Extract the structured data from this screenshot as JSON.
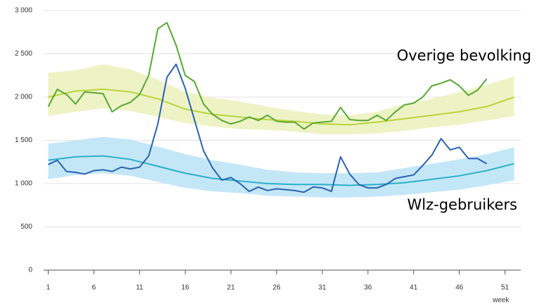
{
  "chart_data": {
    "type": "line",
    "x": [
      1,
      2,
      3,
      4,
      5,
      6,
      7,
      8,
      9,
      10,
      11,
      12,
      13,
      14,
      15,
      16,
      17,
      18,
      19,
      20,
      21,
      22,
      23,
      24,
      25,
      26,
      27,
      28,
      29,
      30,
      31,
      32,
      33,
      34,
      35,
      36,
      37,
      38,
      39,
      40,
      41,
      42,
      43,
      44,
      45,
      46,
      47,
      48,
      49,
      50,
      51,
      52
    ],
    "xlim": [
      0.5,
      52.5
    ],
    "xticks": [
      1,
      6,
      11,
      16,
      21,
      26,
      31,
      36,
      41,
      46,
      51
    ],
    "xlabel": "week",
    "ylim": [
      0,
      3000
    ],
    "yticks": [
      {
        "value": 0,
        "label": "0"
      },
      {
        "value": 500,
        "label": "500"
      },
      {
        "value": 1000,
        "label": "1 000"
      },
      {
        "value": 1500,
        "label": "1 500"
      },
      {
        "value": 2000,
        "label": "2 000"
      },
      {
        "value": 2500,
        "label": "2 500"
      },
      {
        "value": 3000,
        "label": "3 000"
      }
    ],
    "grid": true,
    "legend": "inline",
    "bands": [
      {
        "x": [
          1,
          4,
          7,
          10,
          13,
          16,
          19,
          22,
          25,
          28,
          31,
          34,
          37,
          40,
          43,
          46,
          49,
          52
        ],
        "center": [
          2000,
          2070,
          2090,
          2060,
          1980,
          1860,
          1800,
          1770,
          1740,
          1720,
          1690,
          1680,
          1710,
          1750,
          1790,
          1830,
          1890,
          2000
        ],
        "upper": [
          2280,
          2310,
          2380,
          2320,
          2200,
          2060,
          1990,
          1950,
          1890,
          1840,
          1800,
          1790,
          1830,
          1920,
          1980,
          2060,
          2140,
          2240
        ],
        "lower": [
          1780,
          1830,
          1870,
          1840,
          1770,
          1700,
          1660,
          1630,
          1620,
          1600,
          1570,
          1570,
          1580,
          1610,
          1650,
          1680,
          1730,
          1780
        ],
        "color": "#eef3c6",
        "center_color": "#b9d53a"
      },
      {
        "x": [
          1,
          4,
          7,
          10,
          13,
          16,
          19,
          22,
          25,
          28,
          31,
          34,
          37,
          40,
          43,
          46,
          49,
          52
        ],
        "center": [
          1270,
          1310,
          1320,
          1280,
          1200,
          1120,
          1060,
          1030,
          1000,
          990,
          990,
          980,
          990,
          1010,
          1050,
          1090,
          1150,
          1230
        ],
        "upper": [
          1460,
          1500,
          1540,
          1510,
          1430,
          1340,
          1270,
          1220,
          1160,
          1130,
          1120,
          1120,
          1130,
          1180,
          1230,
          1280,
          1340,
          1420
        ],
        "lower": [
          1050,
          1100,
          1120,
          1090,
          1020,
          950,
          910,
          890,
          860,
          850,
          840,
          840,
          850,
          870,
          900,
          930,
          980,
          1040
        ],
        "color": "#c4e7f8",
        "center_color": "#2bb0c9"
      }
    ],
    "series": [
      {
        "name": "Overige bevolking",
        "color": "#58a832",
        "values": [
          1890,
          2090,
          2030,
          1920,
          2060,
          2050,
          2040,
          1830,
          1900,
          1940,
          2030,
          2250,
          2790,
          2860,
          2600,
          2250,
          2180,
          1920,
          1800,
          1730,
          1690,
          1720,
          1770,
          1730,
          1790,
          1720,
          1710,
          1710,
          1630,
          1700,
          1710,
          1720,
          1880,
          1740,
          1730,
          1730,
          1790,
          1730,
          1830,
          1910,
          1930,
          2000,
          2130,
          2160,
          2200,
          2130,
          2020,
          2080,
          2210,
          null,
          null,
          null
        ]
      },
      {
        "name": "Wlz-gebruikers",
        "color": "#2a62b4",
        "values": [
          1220,
          1270,
          1140,
          1130,
          1110,
          1150,
          1160,
          1140,
          1190,
          1170,
          1190,
          1320,
          1690,
          2230,
          2380,
          2100,
          1740,
          1380,
          1180,
          1040,
          1070,
          1000,
          910,
          960,
          920,
          940,
          930,
          920,
          900,
          960,
          950,
          910,
          1310,
          1110,
          990,
          950,
          950,
          990,
          1060,
          1080,
          1100,
          1210,
          1330,
          1520,
          1390,
          1420,
          1290,
          1290,
          1230,
          null,
          null,
          null
        ]
      }
    ]
  }
}
